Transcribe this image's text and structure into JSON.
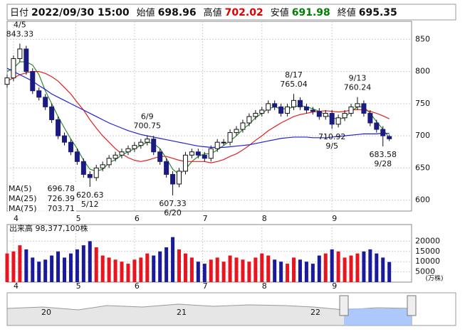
{
  "header": {
    "items": [
      {
        "label": "日付",
        "value": "2022/09/30 15:00"
      },
      {
        "label": "始値",
        "value": 698.96,
        "color": "#111111"
      },
      {
        "label": "高値",
        "value": 702.02,
        "color": "#e00000"
      },
      {
        "label": "安値",
        "value": 691.98,
        "color": "#008000"
      },
      {
        "label": "終値",
        "value": 695.35,
        "color": "#111111"
      }
    ]
  },
  "chart_data": {
    "type": "candlestick",
    "x": [
      0,
      2,
      4,
      6,
      8,
      10,
      12,
      14,
      16,
      18,
      20,
      22,
      24,
      26,
      28,
      30,
      32,
      34,
      36,
      38,
      40,
      42,
      44,
      46,
      48,
      50,
      52,
      54,
      56,
      58,
      60,
      62,
      64,
      66,
      68,
      70,
      72,
      74,
      76,
      78,
      80,
      82,
      84,
      86,
      88,
      90,
      92,
      94,
      96,
      98,
      100,
      102,
      104,
      106,
      108,
      110,
      112,
      114,
      116,
      118,
      120
    ],
    "open": [
      780,
      790,
      820,
      835,
      800,
      770,
      760,
      745,
      725,
      700,
      690,
      675,
      660,
      640,
      635,
      650,
      655,
      665,
      670,
      675,
      680,
      685,
      690,
      695,
      675,
      660,
      640,
      625,
      645,
      670,
      675,
      670,
      665,
      680,
      690,
      690,
      705,
      710,
      720,
      730,
      735,
      740,
      750,
      745,
      735,
      745,
      755,
      745,
      740,
      738,
      730,
      735,
      718,
      728,
      735,
      745,
      750,
      735,
      720,
      710,
      698.96
    ],
    "high": [
      795,
      825,
      843.33,
      840,
      805,
      775,
      765,
      750,
      730,
      705,
      695,
      680,
      665,
      645,
      655,
      660,
      670,
      675,
      680,
      685,
      690,
      695,
      700.75,
      700,
      680,
      665,
      645,
      650,
      675,
      680,
      680,
      675,
      685,
      695,
      695,
      710,
      715,
      725,
      735,
      740,
      745,
      755,
      755,
      750,
      750,
      765.04,
      760,
      750,
      745,
      743,
      740,
      740,
      733,
      740,
      750,
      760.24,
      755,
      740,
      725,
      715,
      702.02
    ],
    "low": [
      775,
      785,
      815,
      795,
      765,
      755,
      740,
      720,
      695,
      685,
      670,
      655,
      635,
      620.63,
      630,
      645,
      650,
      660,
      665,
      670,
      675,
      680,
      685,
      670,
      655,
      635,
      607.33,
      620,
      640,
      665,
      665,
      660,
      660,
      675,
      685,
      685,
      700,
      705,
      715,
      725,
      730,
      735,
      740,
      730,
      730,
      740,
      740,
      735,
      733,
      725,
      725,
      710.92,
      713,
      723,
      730,
      740,
      730,
      715,
      705,
      683.58,
      691.98
    ],
    "close": [
      790,
      820,
      835,
      800,
      770,
      760,
      745,
      725,
      700,
      690,
      675,
      660,
      640,
      635,
      650,
      655,
      665,
      670,
      675,
      680,
      685,
      690,
      695,
      675,
      660,
      640,
      625,
      645,
      670,
      675,
      670,
      665,
      680,
      690,
      690,
      705,
      710,
      720,
      730,
      735,
      740,
      750,
      745,
      735,
      745,
      755,
      745,
      740,
      738,
      730,
      735,
      718,
      728,
      735,
      745,
      750,
      735,
      720,
      710,
      700,
      695.35
    ],
    "xlim": [
      0,
      127
    ],
    "xticks": [
      {
        "value": 2,
        "label": "4"
      },
      {
        "value": 21.6,
        "label": "5"
      },
      {
        "value": 40,
        "label": "6"
      },
      {
        "value": 61.4,
        "label": "7"
      },
      {
        "value": 80,
        "label": "8"
      },
      {
        "value": 102,
        "label": "9"
      }
    ],
    "ylim": [
      583,
      878
    ],
    "yticks": [
      600,
      650,
      700,
      750,
      800,
      850
    ],
    "grid": true,
    "up_color": "#ffffff",
    "down_color": "#1a1a80",
    "series": [
      {
        "name": "MA(5)",
        "color": "#2e8b2e",
        "values": [
          800,
          805,
          815,
          815,
          810,
          795,
          770,
          750,
          730,
          712,
          695,
          680,
          662,
          648,
          645,
          648,
          658,
          663,
          670,
          675,
          680,
          685,
          690,
          688,
          680,
          665,
          648,
          640,
          648,
          660,
          668,
          672,
          672,
          678,
          685,
          692,
          700,
          710,
          718,
          728,
          735,
          742,
          745,
          742,
          742,
          745,
          747,
          745,
          742,
          738,
          733,
          728,
          726,
          728,
          738,
          745,
          745,
          735,
          722,
          710,
          696.78
        ]
      },
      {
        "name": "MA(25)",
        "color": "#e02020",
        "values": [
          785,
          790,
          795,
          798,
          800,
          800,
          797,
          792,
          785,
          775,
          765,
          752,
          740,
          725,
          712,
          700,
          690,
          680,
          672,
          666,
          662,
          660,
          662,
          665,
          668,
          668,
          665,
          662,
          660,
          660,
          660,
          660,
          658,
          660,
          663,
          668,
          672,
          678,
          685,
          693,
          700,
          708,
          714,
          720,
          725,
          730,
          733,
          735,
          737,
          738,
          739,
          738,
          737,
          738,
          740,
          741,
          740,
          738,
          735,
          731,
          726.39
        ]
      },
      {
        "name": "MA(75)",
        "color": "#2020d0",
        "values": [
          805,
          800,
          795,
          790,
          785,
          778,
          772,
          765,
          760,
          755,
          750,
          745,
          740,
          735,
          730,
          725,
          720,
          716,
          712,
          708,
          705,
          702,
          700,
          698,
          696,
          694,
          692,
          690,
          688,
          686,
          684,
          683,
          682,
          682,
          682,
          683,
          684,
          685,
          686,
          688,
          690,
          692,
          694,
          696,
          697,
          698,
          698,
          698,
          697,
          697,
          697,
          698,
          699,
          700,
          701,
          702,
          703,
          703,
          703,
          704,
          703.71
        ]
      }
    ],
    "annotations": [
      {
        "label": "4/5",
        "value": 843.33,
        "x": 4
      },
      {
        "label": "5/12",
        "value": 620.63,
        "x": 26
      },
      {
        "label": "6/9",
        "value": 700.75,
        "x": 44
      },
      {
        "label": "6/20",
        "value": 607.33,
        "x": 52
      },
      {
        "label": "8/17",
        "value": 765.04,
        "x": 90
      },
      {
        "label": "9/5",
        "value": 710.92,
        "x": 102
      },
      {
        "label": "9/13",
        "value": 760.24,
        "x": 110
      },
      {
        "label": "9/28",
        "value": 683.58,
        "x": 118
      }
    ],
    "volume": {
      "title": "出来高 98,377,100株",
      "unit": "(万株)",
      "values": [
        14000,
        15000,
        18000,
        16000,
        12000,
        10000,
        11000,
        13000,
        15000,
        12000,
        14000,
        16000,
        18000,
        20000,
        17000,
        13000,
        12000,
        11000,
        10000,
        9000,
        11000,
        12000,
        14000,
        13000,
        15000,
        17000,
        22000,
        16000,
        14000,
        12000,
        10000,
        9000,
        11000,
        12000,
        10000,
        13000,
        12000,
        11000,
        10000,
        12000,
        14000,
        13000,
        11000,
        10000,
        9000,
        12000,
        11000,
        10000,
        9000,
        13000,
        14000,
        16000,
        15000,
        12000,
        13000,
        14000,
        15000,
        16000,
        14000,
        12000,
        9837.71
      ],
      "ylim": [
        0,
        25000
      ],
      "yticks": [
        5000,
        10000,
        15000,
        20000
      ],
      "up_color": "#e8141e",
      "down_color": "#1a1a9c"
    }
  },
  "navigator": {
    "labels": [
      "20",
      "21",
      "22"
    ]
  }
}
